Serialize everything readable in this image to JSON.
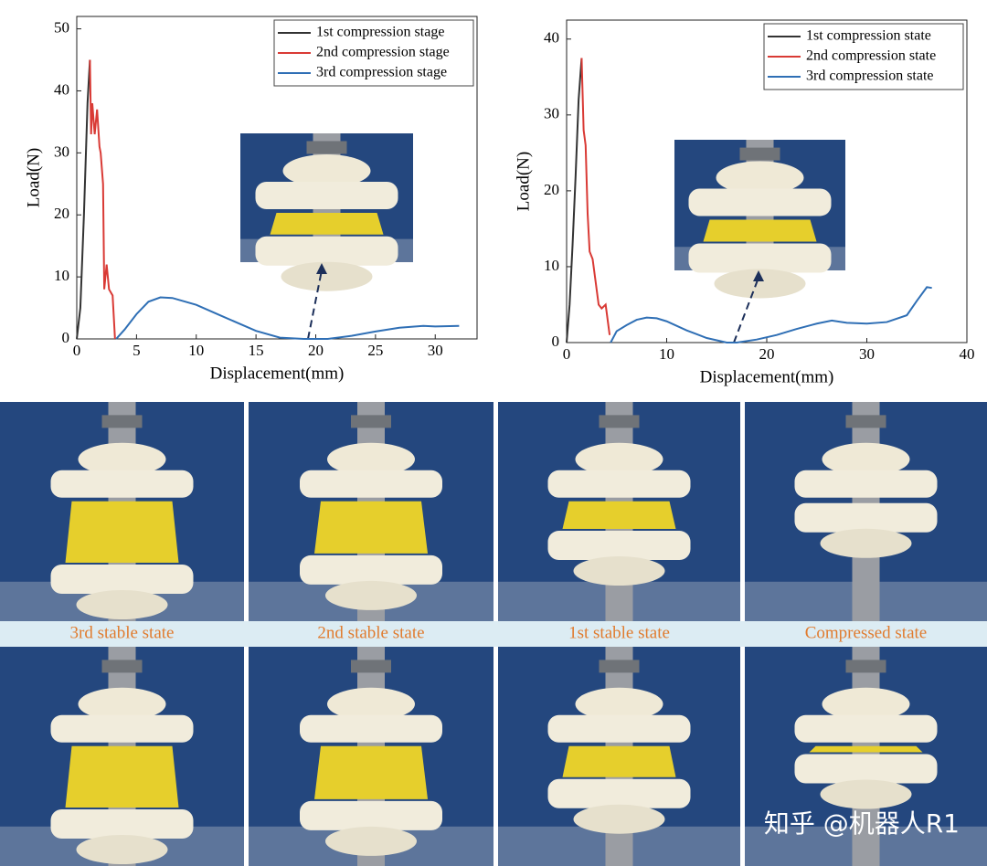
{
  "chart_data": [
    {
      "type": "line",
      "x_label": "Displacement(mm)",
      "y_label": "Load(N)",
      "xlim": [
        0,
        33.5
      ],
      "ylim": [
        0,
        52
      ],
      "xticks": [
        0,
        5,
        10,
        15,
        20,
        25,
        30
      ],
      "yticks": [
        0,
        10,
        20,
        30,
        40,
        50
      ],
      "legend": "upper right",
      "series": [
        {
          "name": "1st compression stage",
          "color": "#333333",
          "x": [
            0,
            0.3,
            0.6,
            0.9,
            1.1
          ],
          "values": [
            0,
            5,
            20,
            38,
            45
          ]
        },
        {
          "name": "2nd compression stage",
          "color": "#d93a35",
          "x": [
            1.1,
            1.2,
            1.3,
            1.5,
            1.7,
            1.9,
            2.0,
            2.2,
            2.3,
            2.5,
            2.7,
            3.0,
            3.2
          ],
          "values": [
            45,
            33,
            38,
            33,
            37,
            31,
            30,
            25,
            8,
            12,
            8,
            7,
            0
          ]
        },
        {
          "name": "3rd compression stage",
          "color": "#2f6fb5",
          "x": [
            3.3,
            4,
            5,
            6,
            7,
            8,
            10,
            12,
            15,
            17,
            19,
            21,
            23,
            25,
            27,
            29,
            30,
            32
          ],
          "values": [
            0,
            1.5,
            4,
            6,
            6.7,
            6.6,
            5.5,
            3.8,
            1.3,
            0.2,
            0,
            0,
            0.5,
            1.2,
            1.8,
            2.1,
            2,
            2.1
          ]
        }
      ]
    },
    {
      "type": "line",
      "x_label": "Displacement(mm)",
      "y_label": "Load(N)",
      "xlim": [
        0,
        40
      ],
      "ylim": [
        0,
        42.5
      ],
      "xticks": [
        0,
        10,
        20,
        30,
        40
      ],
      "yticks": [
        0,
        10,
        20,
        30,
        40
      ],
      "legend": "upper right",
      "series": [
        {
          "name": "1st compression state",
          "color": "#333333",
          "x": [
            0,
            0.3,
            0.6,
            0.9,
            1.2,
            1.5
          ],
          "values": [
            0,
            5,
            13,
            22,
            32,
            37.5
          ]
        },
        {
          "name": "2nd compression state",
          "color": "#d93a35",
          "x": [
            1.5,
            1.7,
            1.9,
            2.1,
            2.3,
            2.6,
            2.9,
            3.2,
            3.5,
            3.9,
            4.3
          ],
          "values": [
            37.5,
            28,
            26,
            17,
            12,
            11,
            8,
            5,
            4.5,
            5,
            1
          ]
        },
        {
          "name": "3rd compression state",
          "color": "#2f6fb5",
          "x": [
            4.4,
            5,
            6,
            7,
            8,
            9,
            10,
            12,
            14,
            16,
            17,
            19,
            21,
            23,
            25,
            26.5,
            28,
            30,
            32,
            34,
            35,
            36,
            36.5
          ],
          "values": [
            0,
            1.5,
            2.3,
            3,
            3.3,
            3.2,
            2.8,
            1.6,
            0.6,
            0,
            0,
            0.4,
            1,
            1.8,
            2.5,
            2.9,
            2.6,
            2.5,
            2.7,
            3.6,
            5.5,
            7.3,
            7.2
          ]
        }
      ]
    }
  ],
  "photo_labels": [
    "3rd stable state",
    "2nd stable state",
    "1st stable state",
    "Compressed state"
  ],
  "watermark": "知乎 @机器人R1"
}
